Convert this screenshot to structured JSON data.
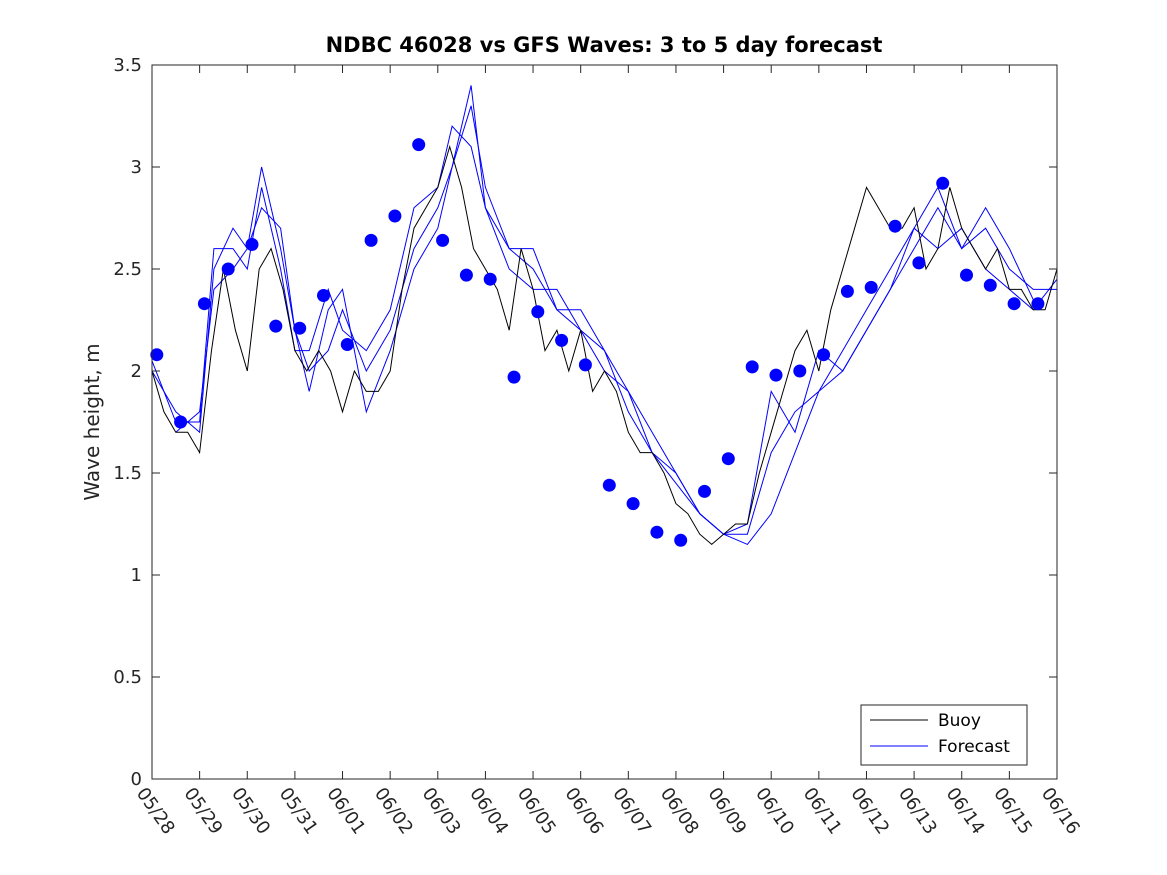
{
  "chart_data": {
    "type": "line",
    "title": "NDBC 46028 vs GFS Waves: 3 to 5 day forecast",
    "xlabel": "",
    "ylabel": "Wave height, m",
    "ylim": [
      0,
      3.5
    ],
    "yticks": [
      "0",
      "0.5",
      "1",
      "1.5",
      "2",
      "2.5",
      "3",
      "3.5"
    ],
    "xlim": [
      0,
      19
    ],
    "xticks": [
      "05/28",
      "05/29",
      "05/30",
      "05/31",
      "06/01",
      "06/02",
      "06/03",
      "06/04",
      "06/05",
      "06/06",
      "06/07",
      "06/08",
      "06/09",
      "06/10",
      "06/11",
      "06/12",
      "06/13",
      "06/14",
      "06/15",
      "06/16"
    ],
    "x_units": "days since 05/28",
    "grid": false,
    "legend": {
      "position": "bottom-right",
      "entries": [
        "Buoy",
        "Forecast"
      ]
    },
    "colors": {
      "buoy": "#000000",
      "forecast": "#0000ff"
    },
    "series": [
      {
        "name": "Buoy",
        "style": "thin black line",
        "x": [
          0.0,
          0.25,
          0.5,
          0.75,
          1.0,
          1.25,
          1.5,
          1.75,
          2.0,
          2.25,
          2.5,
          2.75,
          3.0,
          3.25,
          3.5,
          3.75,
          4.0,
          4.25,
          4.5,
          4.75,
          5.0,
          5.25,
          5.5,
          5.75,
          6.0,
          6.25,
          6.5,
          6.75,
          7.0,
          7.25,
          7.5,
          7.75,
          8.0,
          8.25,
          8.5,
          8.75,
          9.0,
          9.25,
          9.5,
          9.75,
          10.0,
          10.25,
          10.5,
          10.75,
          11.0,
          11.25,
          11.5,
          11.75,
          12.0,
          12.25,
          12.5,
          12.75,
          13.0,
          13.25,
          13.5,
          13.75,
          14.0,
          14.25,
          14.5,
          14.75,
          15.0,
          15.25,
          15.5,
          15.75,
          16.0,
          16.25,
          16.5,
          16.75,
          17.0,
          17.25,
          17.5,
          17.75,
          18.0,
          18.25,
          18.5,
          18.75,
          19.0
        ],
        "y": [
          2.0,
          1.8,
          1.7,
          1.7,
          1.6,
          2.1,
          2.5,
          2.2,
          2.0,
          2.5,
          2.6,
          2.4,
          2.1,
          2.0,
          2.1,
          2.0,
          1.8,
          2.0,
          1.9,
          1.9,
          2.0,
          2.4,
          2.7,
          2.8,
          2.9,
          3.1,
          2.9,
          2.6,
          2.5,
          2.4,
          2.2,
          2.6,
          2.4,
          2.1,
          2.2,
          2.0,
          2.2,
          1.9,
          2.0,
          1.9,
          1.7,
          1.6,
          1.6,
          1.5,
          1.35,
          1.3,
          1.2,
          1.15,
          1.2,
          1.25,
          1.25,
          1.5,
          1.7,
          1.9,
          2.1,
          2.2,
          2.0,
          2.3,
          2.5,
          2.7,
          2.9,
          2.8,
          2.7,
          2.7,
          2.8,
          2.5,
          2.6,
          2.9,
          2.7,
          2.6,
          2.5,
          2.6,
          2.4,
          2.4,
          2.3,
          2.3,
          2.5
        ]
      },
      {
        "name": "Forecast",
        "style": "thin blue lines, one per forecast run",
        "runs": [
          {
            "x": [
              0.0,
              0.5,
              1.0,
              1.3,
              1.7,
              2.0,
              2.3,
              2.7,
              3.0,
              3.3,
              3.7,
              4.0,
              4.5,
              5.0,
              5.5,
              6.0,
              6.3,
              6.7,
              7.0,
              7.5,
              8.0,
              8.5,
              9.0,
              9.5,
              10.0,
              10.5,
              11.0,
              11.5,
              12.0,
              12.5,
              13.0,
              13.5,
              14.0,
              14.5,
              15.0,
              15.5,
              16.0,
              16.5,
              17.0,
              17.5,
              18.0,
              18.5,
              19.0
            ],
            "y": [
              2.0,
              1.8,
              1.7,
              2.5,
              2.7,
              2.6,
              2.8,
              2.7,
              2.2,
              2.0,
              2.1,
              2.3,
              2.0,
              2.2,
              2.6,
              2.8,
              3.0,
              3.3,
              2.9,
              2.6,
              2.5,
              2.3,
              2.3,
              2.1,
              1.9,
              1.7,
              1.5,
              1.3,
              1.2,
              1.15,
              1.3,
              1.6,
              1.9,
              2.0,
              2.2,
              2.4,
              2.6,
              2.8,
              2.6,
              2.7,
              2.5,
              2.4,
              2.4
            ]
          },
          {
            "x": [
              0.0,
              0.5,
              1.0,
              1.3,
              1.7,
              2.0,
              2.3,
              2.7,
              3.0,
              3.3,
              3.7,
              4.0,
              4.5,
              5.0,
              5.5,
              6.0,
              6.3,
              6.7,
              7.0,
              7.5,
              8.0,
              8.5,
              9.0,
              9.5,
              10.0,
              10.5,
              11.0,
              11.5,
              12.0,
              12.5,
              13.0,
              13.5,
              14.0,
              14.5,
              15.0,
              15.5,
              16.0,
              16.5,
              17.0,
              17.5,
              18.0,
              18.5,
              19.0
            ],
            "y": [
              2.05,
              1.75,
              1.75,
              2.6,
              2.6,
              2.5,
              2.9,
              2.5,
              2.1,
              2.1,
              2.4,
              2.2,
              2.1,
              2.3,
              2.8,
              2.9,
              3.2,
              3.1,
              2.8,
              2.5,
              2.4,
              2.4,
              2.2,
              2.0,
              1.9,
              1.6,
              1.45,
              1.3,
              1.2,
              1.2,
              1.6,
              1.8,
              1.9,
              2.1,
              2.3,
              2.5,
              2.7,
              2.6,
              2.7,
              2.5,
              2.4,
              2.3,
              2.45
            ]
          },
          {
            "x": [
              0.5,
              1.0,
              1.3,
              1.7,
              2.0,
              2.3,
              2.7,
              3.0,
              3.3,
              3.7,
              4.0,
              4.5,
              5.0,
              5.5,
              6.0,
              6.3,
              6.7,
              7.0,
              7.5,
              8.0,
              8.5,
              9.0,
              9.5,
              10.0,
              10.5,
              11.0,
              11.5,
              12.0,
              12.5,
              13.0,
              13.5,
              14.0,
              14.5,
              15.0,
              15.5,
              16.0,
              16.5,
              17.0,
              17.5,
              18.0,
              18.5
            ],
            "y": [
              1.7,
              1.8,
              2.4,
              2.5,
              2.6,
              3.0,
              2.6,
              2.2,
              1.9,
              2.3,
              2.4,
              1.8,
              2.1,
              2.5,
              2.7,
              3.0,
              3.4,
              2.8,
              2.6,
              2.6,
              2.3,
              2.2,
              2.1,
              1.8,
              1.6,
              1.5,
              1.3,
              1.2,
              1.25,
              1.9,
              1.7,
              2.1,
              2.0,
              2.2,
              2.4,
              2.7,
              2.9,
              2.6,
              2.8,
              2.6,
              2.35
            ]
          }
        ],
        "markers": {
          "x": [
            0.1,
            0.6,
            1.1,
            1.6,
            2.1,
            2.6,
            3.1,
            3.6,
            4.1,
            4.6,
            5.1,
            5.6,
            6.1,
            6.6,
            7.1,
            7.6,
            8.1,
            8.6,
            9.1,
            9.6,
            10.1,
            10.6,
            11.1,
            11.6,
            12.1,
            12.6,
            13.1,
            13.6,
            14.1,
            14.6,
            15.1,
            15.6,
            16.1,
            16.6,
            17.1,
            17.6,
            18.1,
            18.6
          ],
          "y": [
            2.08,
            1.75,
            2.33,
            2.5,
            2.62,
            2.22,
            2.21,
            2.37,
            2.13,
            2.64,
            2.76,
            3.11,
            2.64,
            2.47,
            2.45,
            1.97,
            2.29,
            2.15,
            2.03,
            1.44,
            1.35,
            1.21,
            1.17,
            1.41,
            1.57,
            2.02,
            1.98,
            2.0,
            2.08,
            2.39,
            2.41,
            2.71,
            2.53,
            2.92,
            2.47,
            2.42,
            2.33,
            2.33
          ]
        }
      }
    ]
  }
}
